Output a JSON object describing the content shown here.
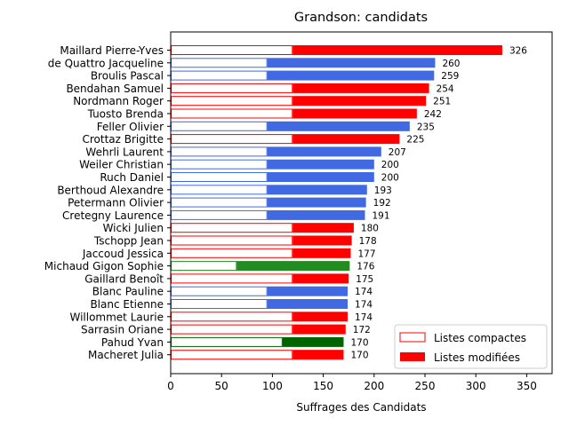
{
  "chart_data": {
    "type": "bar",
    "orientation": "horizontal",
    "stacked": true,
    "title": "Grandson: candidats",
    "xlabel": "Suffrages des Candidats",
    "xlim": [
      0,
      375
    ],
    "xticks": [
      0,
      50,
      100,
      150,
      200,
      250,
      300,
      350
    ],
    "categories": [
      "Maillard Pierre-Yves",
      "de Quattro Jacqueline",
      "Broulis Pascal",
      "Bendahan Samuel",
      "Nordmann Roger",
      "Tuosto Brenda",
      "Feller Olivier",
      "Crottaz Brigitte",
      "Wehrli Laurent",
      "Weiler Christian",
      "Ruch Daniel",
      "Berthoud Alexandre",
      "Petermann Olivier",
      "Cretegny Laurence",
      "Wicki Julien",
      "Tschopp Jean",
      "Jaccoud Jessica",
      "Michaud Gigon Sophie",
      "Gaillard Benoît",
      "Blanc Pauline",
      "Blanc Etienne",
      "Willommet Laurie",
      "Sarrasin Oriane",
      "Pahud Yvan",
      "Macheret Julia"
    ],
    "series": [
      {
        "name": "Listes compactes",
        "values": [
          120,
          95,
          95,
          120,
          120,
          120,
          95,
          120,
          95,
          95,
          95,
          95,
          95,
          95,
          120,
          120,
          120,
          65,
          120,
          95,
          95,
          120,
          120,
          110,
          120
        ]
      },
      {
        "name": "Listes modifiées",
        "values": [
          206,
          165,
          164,
          134,
          131,
          122,
          140,
          105,
          112,
          105,
          105,
          98,
          97,
          96,
          60,
          58,
          57,
          111,
          55,
          79,
          79,
          54,
          52,
          60,
          50
        ]
      }
    ],
    "totals": [
      326,
      260,
      259,
      254,
      251,
      242,
      235,
      225,
      207,
      200,
      200,
      193,
      192,
      191,
      180,
      178,
      177,
      176,
      175,
      174,
      174,
      174,
      172,
      170,
      170
    ],
    "party_colors": [
      "#ff0000",
      "#4169e1",
      "#4169e1",
      "#ff0000",
      "#ff0000",
      "#ff0000",
      "#4169e1",
      "#ff0000",
      "#4169e1",
      "#4169e1",
      "#4169e1",
      "#4169e1",
      "#4169e1",
      "#4169e1",
      "#ff0000",
      "#ff0000",
      "#ff0000",
      "#228b22",
      "#ff0000",
      "#4169e1",
      "#4169e1",
      "#ff0000",
      "#ff0000",
      "#006400",
      "#ff0000"
    ],
    "legend": {
      "position": "lower-right",
      "entries": [
        {
          "label": "Listes compactes",
          "style": "outline",
          "color": "#ff0000"
        },
        {
          "label": "Listes modifiées",
          "style": "filled",
          "color": "#ff0000"
        }
      ]
    },
    "grid": false
  }
}
